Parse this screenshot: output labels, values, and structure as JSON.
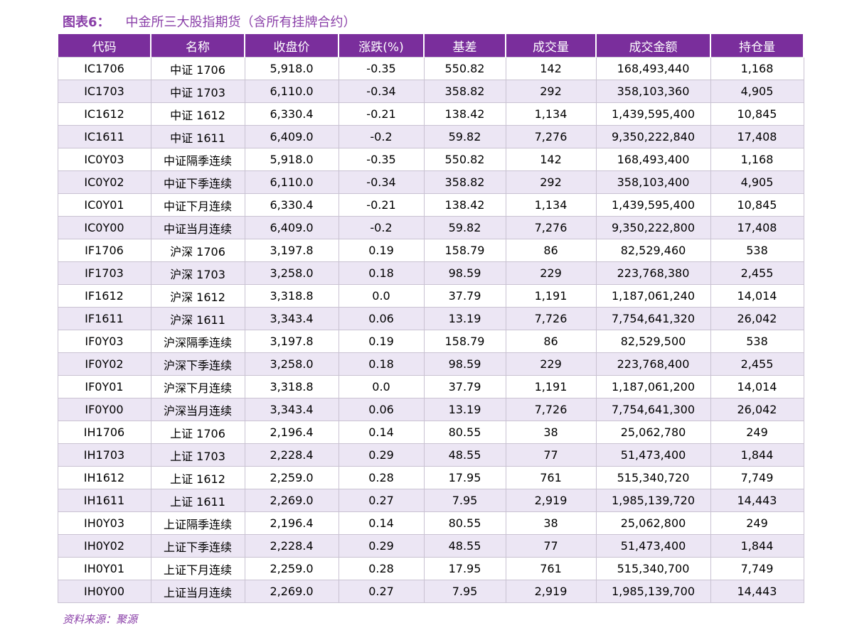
{
  "title": {
    "label": "图表6：",
    "text": "中金所三大股指期货（含所有挂牌合约）"
  },
  "table": {
    "headers": [
      "代码",
      "名称",
      "收盘价",
      "涨跌(%)",
      "基差",
      "成交量",
      "成交金额",
      "持仓量"
    ],
    "rows": [
      [
        "IC1706",
        "中证 1706",
        "5,918.0",
        "-0.35",
        "550.82",
        "142",
        "168,493,440",
        "1,168"
      ],
      [
        "IC1703",
        "中证 1703",
        "6,110.0",
        "-0.34",
        "358.82",
        "292",
        "358,103,360",
        "4,905"
      ],
      [
        "IC1612",
        "中证 1612",
        "6,330.4",
        "-0.21",
        "138.42",
        "1,134",
        "1,439,595,400",
        "10,845"
      ],
      [
        "IC1611",
        "中证 1611",
        "6,409.0",
        "-0.2",
        "59.82",
        "7,276",
        "9,350,222,840",
        "17,408"
      ],
      [
        "IC0Y03",
        "中证隔季连续",
        "5,918.0",
        "-0.35",
        "550.82",
        "142",
        "168,493,400",
        "1,168"
      ],
      [
        "IC0Y02",
        "中证下季连续",
        "6,110.0",
        "-0.34",
        "358.82",
        "292",
        "358,103,400",
        "4,905"
      ],
      [
        "IC0Y01",
        "中证下月连续",
        "6,330.4",
        "-0.21",
        "138.42",
        "1,134",
        "1,439,595,400",
        "10,845"
      ],
      [
        "IC0Y00",
        "中证当月连续",
        "6,409.0",
        "-0.2",
        "59.82",
        "7,276",
        "9,350,222,800",
        "17,408"
      ],
      [
        "IF1706",
        "沪深 1706",
        "3,197.8",
        "0.19",
        "158.79",
        "86",
        "82,529,460",
        "538"
      ],
      [
        "IF1703",
        "沪深 1703",
        "3,258.0",
        "0.18",
        "98.59",
        "229",
        "223,768,380",
        "2,455"
      ],
      [
        "IF1612",
        "沪深 1612",
        "3,318.8",
        "0.0",
        "37.79",
        "1,191",
        "1,187,061,240",
        "14,014"
      ],
      [
        "IF1611",
        "沪深 1611",
        "3,343.4",
        "0.06",
        "13.19",
        "7,726",
        "7,754,641,320",
        "26,042"
      ],
      [
        "IF0Y03",
        "沪深隔季连续",
        "3,197.8",
        "0.19",
        "158.79",
        "86",
        "82,529,500",
        "538"
      ],
      [
        "IF0Y02",
        "沪深下季连续",
        "3,258.0",
        "0.18",
        "98.59",
        "229",
        "223,768,400",
        "2,455"
      ],
      [
        "IF0Y01",
        "沪深下月连续",
        "3,318.8",
        "0.0",
        "37.79",
        "1,191",
        "1,187,061,200",
        "14,014"
      ],
      [
        "IF0Y00",
        "沪深当月连续",
        "3,343.4",
        "0.06",
        "13.19",
        "7,726",
        "7,754,641,300",
        "26,042"
      ],
      [
        "IH1706",
        "上证 1706",
        "2,196.4",
        "0.14",
        "80.55",
        "38",
        "25,062,780",
        "249"
      ],
      [
        "IH1703",
        "上证 1703",
        "2,228.4",
        "0.29",
        "48.55",
        "77",
        "51,473,400",
        "1,844"
      ],
      [
        "IH1612",
        "上证 1612",
        "2,259.0",
        "0.28",
        "17.95",
        "761",
        "515,340,720",
        "7,749"
      ],
      [
        "IH1611",
        "上证 1611",
        "2,269.0",
        "0.27",
        "7.95",
        "2,919",
        "1,985,139,720",
        "14,443"
      ],
      [
        "IH0Y03",
        "上证隔季连续",
        "2,196.4",
        "0.14",
        "80.55",
        "38",
        "25,062,800",
        "249"
      ],
      [
        "IH0Y02",
        "上证下季连续",
        "2,228.4",
        "0.29",
        "48.55",
        "77",
        "51,473,400",
        "1,844"
      ],
      [
        "IH0Y01",
        "上证下月连续",
        "2,259.0",
        "0.28",
        "17.95",
        "761",
        "515,340,700",
        "7,749"
      ],
      [
        "IH0Y00",
        "上证当月连续",
        "2,269.0",
        "0.27",
        "7.95",
        "2,919",
        "1,985,139,700",
        "14,443"
      ]
    ]
  },
  "source": "资料来源：聚源"
}
